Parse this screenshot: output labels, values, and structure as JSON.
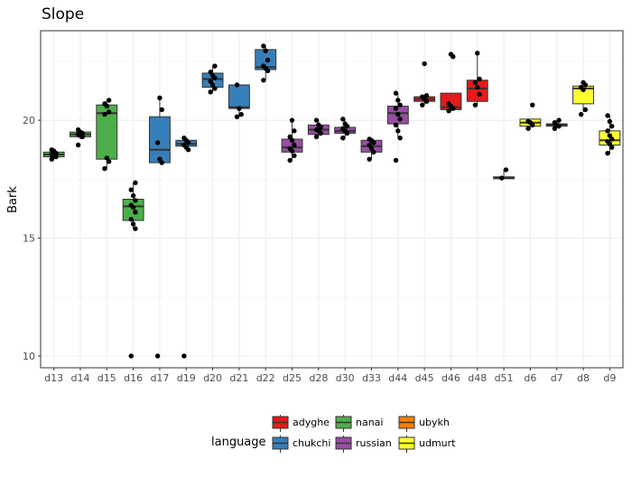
{
  "chart_data": {
    "type": "box",
    "title": "Slope",
    "xlabel": "",
    "ylabel": "Bark",
    "ylim": [
      9.5,
      23.8
    ],
    "yticks": [
      10,
      15,
      20
    ],
    "grid": true,
    "legend": {
      "title": "language",
      "position": "bottom",
      "entries": [
        {
          "name": "adyghe",
          "color": "#e41a1c"
        },
        {
          "name": "nanai",
          "color": "#4daf4a"
        },
        {
          "name": "ubykh",
          "color": "#ff7f00"
        },
        {
          "name": "chukchi",
          "color": "#377eb8"
        },
        {
          "name": "russian",
          "color": "#984ea3"
        },
        {
          "name": "udmurt",
          "color": "#ffff33"
        }
      ]
    },
    "categories": [
      "d13",
      "d14",
      "d15",
      "d16",
      "d17",
      "d19",
      "d20",
      "d21",
      "d22",
      "d25",
      "d28",
      "d30",
      "d33",
      "d44",
      "d45",
      "d46",
      "d48",
      "d51",
      "d6",
      "d7",
      "d8",
      "d9"
    ],
    "boxes": [
      {
        "cat": "d13",
        "lang": "nanai",
        "wmin": 18.35,
        "q1": 18.45,
        "med": 18.55,
        "q3": 18.65,
        "wmax": 18.75,
        "points": [
          18.35,
          18.45,
          18.5,
          18.55,
          18.6,
          18.7,
          18.75
        ]
      },
      {
        "cat": "d14",
        "lang": "nanai",
        "wmin": 19.2,
        "q1": 19.3,
        "med": 19.4,
        "q3": 19.5,
        "wmax": 19.6,
        "points": [
          18.95,
          19.3,
          19.35,
          19.4,
          19.45,
          19.5,
          19.6
        ]
      },
      {
        "cat": "d15",
        "lang": "nanai",
        "wmin": 17.95,
        "q1": 18.35,
        "med": 20.3,
        "q3": 20.65,
        "wmax": 20.85,
        "points": [
          17.95,
          18.25,
          18.4,
          20.25,
          20.35,
          20.6,
          20.7,
          20.85
        ]
      },
      {
        "cat": "d16",
        "lang": "nanai",
        "wmin": 15.4,
        "q1": 15.75,
        "med": 16.35,
        "q3": 16.65,
        "wmax": 17.35,
        "points": [
          10.0,
          15.4,
          15.6,
          15.8,
          16.1,
          16.3,
          16.4,
          16.6,
          16.8,
          17.05,
          17.35
        ]
      },
      {
        "cat": "d17",
        "lang": "chukchi",
        "wmin": 18.2,
        "q1": 18.2,
        "med": 18.75,
        "q3": 20.15,
        "wmax": 20.95,
        "points": [
          10.0,
          18.2,
          18.35,
          19.05,
          20.45,
          20.95
        ]
      },
      {
        "cat": "d19",
        "lang": "chukchi",
        "wmin": 18.75,
        "q1": 18.9,
        "med": 19.0,
        "q3": 19.15,
        "wmax": 19.25,
        "points": [
          10.0,
          18.75,
          18.85,
          18.95,
          19.05,
          19.15,
          19.25
        ]
      },
      {
        "cat": "d20",
        "lang": "chukchi",
        "wmin": 21.2,
        "q1": 21.4,
        "med": 21.75,
        "q3": 22.0,
        "wmax": 22.3,
        "points": [
          21.2,
          21.35,
          21.5,
          21.65,
          21.8,
          21.9,
          22.05,
          22.3
        ]
      },
      {
        "cat": "d21",
        "lang": "chukchi",
        "wmin": 20.15,
        "q1": 20.5,
        "med": 20.55,
        "q3": 21.5,
        "wmax": 21.5,
        "points": [
          20.15,
          20.25,
          20.5,
          21.5
        ]
      },
      {
        "cat": "d22",
        "lang": "chukchi",
        "wmin": 21.7,
        "q1": 22.15,
        "med": 22.25,
        "q3": 23.0,
        "wmax": 23.15,
        "points": [
          21.7,
          22.1,
          22.2,
          22.3,
          22.55,
          22.95,
          23.15
        ]
      },
      {
        "cat": "d25",
        "lang": "russian",
        "wmin": 18.3,
        "q1": 18.65,
        "med": 18.85,
        "q3": 19.2,
        "wmax": 20.0,
        "points": [
          18.3,
          18.5,
          18.7,
          18.8,
          18.95,
          19.15,
          19.3,
          19.55,
          20.0
        ]
      },
      {
        "cat": "d28",
        "lang": "russian",
        "wmin": 19.3,
        "q1": 19.4,
        "med": 19.6,
        "q3": 19.8,
        "wmax": 20.0,
        "points": [
          19.3,
          19.45,
          19.55,
          19.6,
          19.7,
          19.8,
          20.0
        ]
      },
      {
        "cat": "d30",
        "lang": "russian",
        "wmin": 19.25,
        "q1": 19.45,
        "med": 19.55,
        "q3": 19.7,
        "wmax": 20.05,
        "points": [
          19.25,
          19.45,
          19.55,
          19.65,
          19.75,
          19.85,
          20.05
        ]
      },
      {
        "cat": "d33",
        "lang": "russian",
        "wmin": 18.35,
        "q1": 18.65,
        "med": 18.9,
        "q3": 19.15,
        "wmax": 19.2,
        "points": [
          18.35,
          18.65,
          18.8,
          18.95,
          19.05,
          19.15,
          19.2
        ]
      },
      {
        "cat": "d44",
        "lang": "russian",
        "wmin": 19.25,
        "q1": 19.85,
        "med": 20.3,
        "q3": 20.6,
        "wmax": 21.15,
        "points": [
          18.3,
          19.25,
          19.55,
          19.8,
          20.05,
          20.25,
          20.5,
          20.65,
          20.85,
          21.15
        ]
      },
      {
        "cat": "d45",
        "lang": "adyghe",
        "wmin": 20.65,
        "q1": 20.8,
        "med": 20.9,
        "q3": 21.0,
        "wmax": 21.05,
        "points": [
          20.65,
          20.8,
          20.9,
          21.0,
          21.05,
          22.4
        ]
      },
      {
        "cat": "d46",
        "lang": "adyghe",
        "wmin": 20.4,
        "q1": 20.45,
        "med": 20.55,
        "q3": 21.15,
        "wmax": 21.15,
        "points": [
          20.4,
          20.5,
          20.6,
          20.7,
          22.7,
          22.8
        ]
      },
      {
        "cat": "d48",
        "lang": "adyghe",
        "wmin": 20.65,
        "q1": 20.8,
        "med": 21.35,
        "q3": 21.7,
        "wmax": 22.85,
        "points": [
          20.65,
          21.1,
          21.4,
          21.6,
          21.75,
          22.85
        ]
      },
      {
        "cat": "d51",
        "lang": "ubykh",
        "wmin": 17.5,
        "q1": 17.52,
        "med": 17.55,
        "q3": 17.6,
        "wmax": 17.9,
        "points": [
          17.55,
          17.9
        ]
      },
      {
        "cat": "d6",
        "lang": "udmurt",
        "wmin": 19.65,
        "q1": 19.75,
        "med": 19.9,
        "q3": 20.05,
        "wmax": 20.05,
        "points": [
          19.65,
          19.8,
          19.9,
          19.95,
          20.65
        ]
      },
      {
        "cat": "d7",
        "lang": "udmurt",
        "wmin": 19.65,
        "q1": 19.75,
        "med": 19.8,
        "q3": 19.85,
        "wmax": 20.0,
        "points": [
          19.65,
          19.75,
          19.8,
          19.9,
          20.0
        ]
      },
      {
        "cat": "d8",
        "lang": "udmurt",
        "wmin": 20.35,
        "q1": 20.7,
        "med": 21.35,
        "q3": 21.45,
        "wmax": 21.6,
        "points": [
          20.25,
          20.45,
          21.3,
          21.4,
          21.5,
          21.6
        ]
      },
      {
        "cat": "d9",
        "lang": "udmurt",
        "wmin": 18.6,
        "q1": 18.95,
        "med": 19.15,
        "q3": 19.55,
        "wmax": 20.2,
        "points": [
          18.6,
          18.85,
          19.0,
          19.1,
          19.2,
          19.35,
          19.55,
          19.75,
          19.95,
          20.2
        ]
      }
    ]
  }
}
